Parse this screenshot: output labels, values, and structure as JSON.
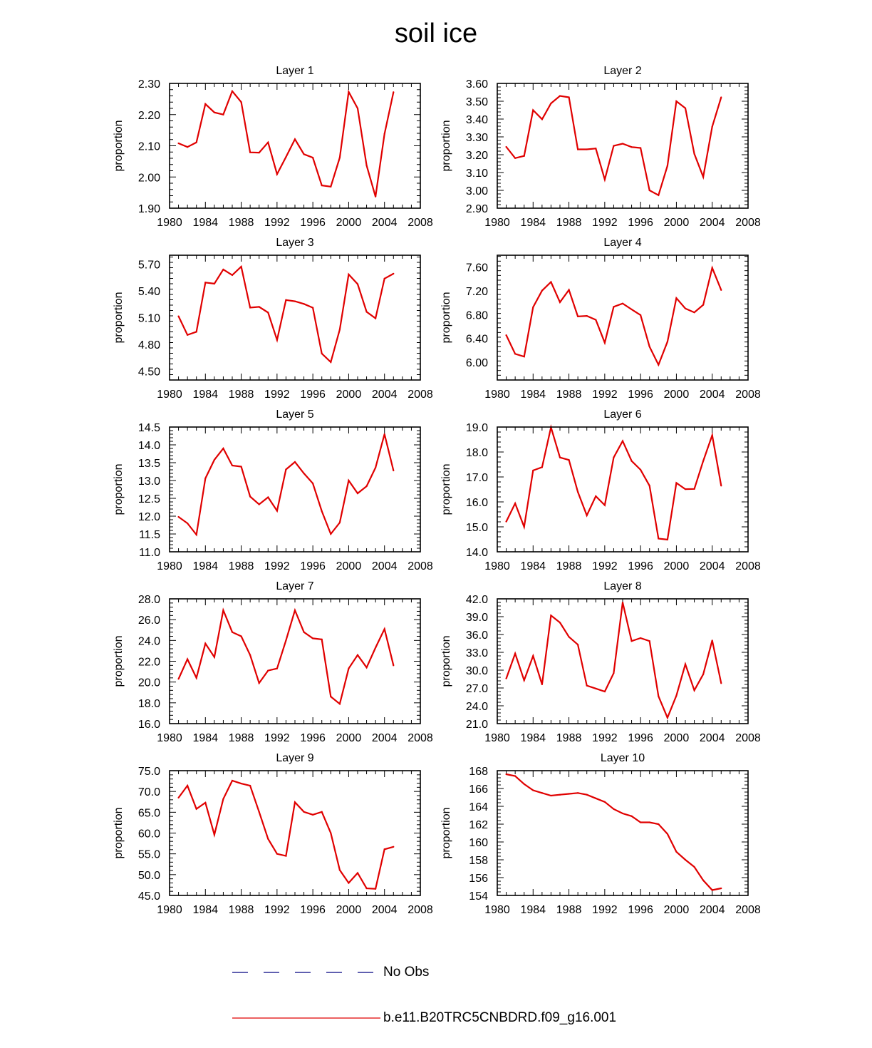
{
  "title": "soil ice",
  "series_colors": {
    "model": "#e00000",
    "obs": "#000080"
  },
  "legend": {
    "obs_label": "No Obs",
    "model_label": "b.e11.B20TRC5CNBDRD.f09_g16.001"
  },
  "chart_data": [
    {
      "type": "line",
      "title": "Layer 1",
      "xlabel": "",
      "ylabel": "proportion",
      "xlim": [
        1980,
        2008
      ],
      "ylim": [
        1.9,
        2.3
      ],
      "x_ticks": [
        "1980",
        "1984",
        "1988",
        "1992",
        "1996",
        "2000",
        "2004",
        "2008"
      ],
      "y_ticks": [
        "1.90",
        "2.00",
        "2.10",
        "2.20",
        "2.30"
      ],
      "x": [
        1981,
        1982,
        1983,
        1984,
        1985,
        1986,
        1987,
        1988,
        1989,
        1990,
        1991,
        1992,
        1993,
        1994,
        1995,
        1996,
        1997,
        1998,
        1999,
        2000,
        2001,
        2002,
        2003,
        2004,
        2005
      ],
      "values": [
        2.108,
        2.096,
        2.111,
        2.234,
        2.207,
        2.2,
        2.275,
        2.24,
        2.079,
        2.078,
        2.111,
        2.009,
        2.064,
        2.121,
        2.073,
        2.062,
        1.973,
        1.969,
        2.062,
        2.273,
        2.22,
        2.037,
        1.937,
        2.138,
        2.272
      ]
    },
    {
      "type": "line",
      "title": "Layer 2",
      "xlabel": "",
      "ylabel": "proportion",
      "xlim": [
        1980,
        2008
      ],
      "ylim": [
        2.9,
        3.6
      ],
      "x_ticks": [
        "1980",
        "1984",
        "1988",
        "1992",
        "1996",
        "2000",
        "2004",
        "2008"
      ],
      "y_ticks": [
        "2.90",
        "3.00",
        "3.10",
        "3.20",
        "3.30",
        "3.40",
        "3.50",
        "3.60"
      ],
      "x": [
        1981,
        1982,
        1983,
        1984,
        1985,
        1986,
        1987,
        1988,
        1989,
        1990,
        1991,
        1992,
        1993,
        1994,
        1995,
        1996,
        1997,
        1998,
        1999,
        2000,
        2001,
        2002,
        2003,
        2004,
        2005
      ],
      "values": [
        3.244,
        3.181,
        3.193,
        3.45,
        3.399,
        3.488,
        3.53,
        3.522,
        3.23,
        3.23,
        3.235,
        3.061,
        3.25,
        3.262,
        3.243,
        3.238,
        3.0,
        2.973,
        3.138,
        3.5,
        3.461,
        3.205,
        3.075,
        3.357,
        3.522
      ]
    },
    {
      "type": "line",
      "title": "Layer 3",
      "xlabel": "",
      "ylabel": "proportion",
      "xlim": [
        1980,
        2008
      ],
      "ylim": [
        4.4,
        5.8
      ],
      "x_ticks": [
        "1980",
        "1984",
        "1988",
        "1992",
        "1996",
        "2000",
        "2004",
        "2008"
      ],
      "y_ticks": [
        "4.50",
        "4.80",
        "5.10",
        "5.40",
        "5.70"
      ],
      "x": [
        1981,
        1982,
        1983,
        1984,
        1985,
        1986,
        1987,
        1988,
        1989,
        1990,
        1991,
        1992,
        1993,
        1994,
        1995,
        1996,
        1997,
        1998,
        1999,
        2000,
        2001,
        2002,
        2003,
        2004,
        2005
      ],
      "values": [
        5.115,
        4.906,
        4.941,
        5.494,
        5.481,
        5.64,
        5.577,
        5.672,
        5.212,
        5.221,
        5.157,
        4.849,
        5.298,
        5.283,
        5.254,
        5.211,
        4.697,
        4.601,
        4.966,
        5.585,
        5.476,
        5.165,
        5.092,
        5.538,
        5.593
      ]
    },
    {
      "type": "line",
      "title": "Layer 4",
      "xlabel": "",
      "ylabel": "proportion",
      "xlim": [
        1980,
        2008
      ],
      "ylim": [
        5.7,
        7.8
      ],
      "x_ticks": [
        "1980",
        "1984",
        "1988",
        "1992",
        "1996",
        "2000",
        "2004",
        "2008"
      ],
      "y_ticks": [
        "6.00",
        "6.40",
        "6.80",
        "7.20",
        "7.60"
      ],
      "x": [
        1981,
        1982,
        1983,
        1984,
        1985,
        1986,
        1987,
        1988,
        1989,
        1990,
        1991,
        1992,
        1993,
        1994,
        1995,
        1996,
        1997,
        1998,
        1999,
        2000,
        2001,
        2002,
        2003,
        2004,
        2005
      ],
      "values": [
        6.455,
        6.139,
        6.094,
        6.925,
        7.205,
        7.35,
        7.009,
        7.217,
        6.771,
        6.779,
        6.713,
        6.328,
        6.932,
        6.988,
        6.888,
        6.793,
        6.262,
        5.956,
        6.344,
        7.078,
        6.904,
        6.838,
        6.965,
        7.588,
        7.214
      ]
    },
    {
      "type": "line",
      "title": "Layer 5",
      "xlabel": "",
      "ylabel": "proportion",
      "xlim": [
        1980,
        2008
      ],
      "ylim": [
        11.0,
        14.5
      ],
      "x_ticks": [
        "1980",
        "1984",
        "1988",
        "1992",
        "1996",
        "2000",
        "2004",
        "2008"
      ],
      "y_ticks": [
        "11.0",
        "11.5",
        "12.0",
        "12.5",
        "13.0",
        "13.5",
        "14.0",
        "14.5"
      ],
      "x": [
        1981,
        1982,
        1983,
        1984,
        1985,
        1986,
        1987,
        1988,
        1989,
        1990,
        1991,
        1992,
        1993,
        1994,
        1995,
        1996,
        1997,
        1998,
        1999,
        2000,
        2001,
        2002,
        2003,
        2004,
        2005
      ],
      "values": [
        11.98,
        11.8,
        11.48,
        13.06,
        13.58,
        13.9,
        13.42,
        13.39,
        12.55,
        12.33,
        12.53,
        12.15,
        13.31,
        13.52,
        13.2,
        12.92,
        12.14,
        11.5,
        11.82,
        13.0,
        12.64,
        12.84,
        13.36,
        14.3,
        13.28
      ]
    },
    {
      "type": "line",
      "title": "Layer 6",
      "xlabel": "",
      "ylabel": "proportion",
      "xlim": [
        1980,
        2008
      ],
      "ylim": [
        14.0,
        19.0
      ],
      "x_ticks": [
        "1980",
        "1984",
        "1988",
        "1992",
        "1996",
        "2000",
        "2004",
        "2008"
      ],
      "y_ticks": [
        "14.0",
        "15.0",
        "16.0",
        "17.0",
        "18.0",
        "19.0"
      ],
      "x": [
        1981,
        1982,
        1983,
        1984,
        1985,
        1986,
        1987,
        1988,
        1989,
        1990,
        1991,
        1992,
        1993,
        1994,
        1995,
        1996,
        1997,
        1998,
        1999,
        2000,
        2001,
        2002,
        2003,
        2004,
        2005
      ],
      "values": [
        15.21,
        15.94,
        15.0,
        17.26,
        17.39,
        18.99,
        17.78,
        17.68,
        16.4,
        15.46,
        16.23,
        15.87,
        17.78,
        18.44,
        17.64,
        17.29,
        16.65,
        14.53,
        14.49,
        16.76,
        16.51,
        16.52,
        17.64,
        18.67,
        16.65
      ]
    },
    {
      "type": "line",
      "title": "Layer 7",
      "xlabel": "",
      "ylabel": "proportion",
      "xlim": [
        1980,
        2008
      ],
      "ylim": [
        16.0,
        28.0
      ],
      "x_ticks": [
        "1980",
        "1984",
        "1988",
        "1992",
        "1996",
        "2000",
        "2004",
        "2008"
      ],
      "y_ticks": [
        "16.0",
        "18.0",
        "20.0",
        "22.0",
        "24.0",
        "26.0",
        "28.0"
      ],
      "x": [
        1981,
        1982,
        1983,
        1984,
        1985,
        1986,
        1987,
        1988,
        1989,
        1990,
        1991,
        1992,
        1993,
        1994,
        1995,
        1996,
        1997,
        1998,
        1999,
        2000,
        2001,
        2002,
        2003,
        2004,
        2005
      ],
      "values": [
        20.3,
        22.2,
        20.4,
        23.7,
        22.4,
        26.9,
        24.8,
        24.4,
        22.6,
        19.9,
        21.1,
        21.3,
        24.0,
        26.9,
        24.8,
        24.2,
        24.1,
        18.6,
        17.9,
        21.3,
        22.6,
        21.4,
        23.3,
        25.1,
        21.6
      ]
    },
    {
      "type": "line",
      "title": "Layer 8",
      "xlabel": "",
      "ylabel": "proportion",
      "xlim": [
        1980,
        2008
      ],
      "ylim": [
        21.0,
        42.0
      ],
      "x_ticks": [
        "1980",
        "1984",
        "1988",
        "1992",
        "1996",
        "2000",
        "2004",
        "2008"
      ],
      "y_ticks": [
        "21.0",
        "24.0",
        "27.0",
        "30.0",
        "33.0",
        "36.0",
        "39.0",
        "42.0"
      ],
      "x": [
        1981,
        1982,
        1983,
        1984,
        1985,
        1986,
        1987,
        1988,
        1989,
        1990,
        1991,
        1992,
        1993,
        1994,
        1995,
        1996,
        1997,
        1998,
        1999,
        2000,
        2001,
        2002,
        2003,
        2004,
        2005
      ],
      "values": [
        28.6,
        32.8,
        28.3,
        32.4,
        27.6,
        39.2,
        38.0,
        35.6,
        34.3,
        27.4,
        26.9,
        26.4,
        29.5,
        41.4,
        34.9,
        35.4,
        34.9,
        25.6,
        22.0,
        25.7,
        31.0,
        26.6,
        29.3,
        35.0,
        27.8
      ]
    },
    {
      "type": "line",
      "title": "Layer 9",
      "xlabel": "",
      "ylabel": "proportion",
      "xlim": [
        1980,
        2008
      ],
      "ylim": [
        45.0,
        75.0
      ],
      "x_ticks": [
        "1980",
        "1984",
        "1988",
        "1992",
        "1996",
        "2000",
        "2004",
        "2008"
      ],
      "y_ticks": [
        "45.0",
        "50.0",
        "55.0",
        "60.0",
        "65.0",
        "70.0",
        "75.0"
      ],
      "x": [
        1981,
        1982,
        1983,
        1984,
        1985,
        1986,
        1987,
        1988,
        1989,
        1990,
        1991,
        1992,
        1993,
        1994,
        1995,
        1996,
        1997,
        1998,
        1999,
        2000,
        2001,
        2002,
        2003,
        2004,
        2005
      ],
      "values": [
        68.5,
        71.4,
        65.8,
        67.3,
        59.6,
        68.2,
        72.6,
        71.9,
        71.4,
        65.1,
        58.6,
        55.0,
        54.5,
        67.4,
        65.1,
        64.4,
        65.1,
        60.0,
        51.1,
        48.0,
        50.4,
        46.7,
        46.6,
        56.1,
        56.7
      ]
    },
    {
      "type": "line",
      "title": "Layer 10",
      "xlabel": "",
      "ylabel": "proportion",
      "xlim": [
        1980,
        2008
      ],
      "ylim": [
        154,
        168
      ],
      "x_ticks": [
        "1980",
        "1984",
        "1988",
        "1992",
        "1996",
        "2000",
        "2004",
        "2008"
      ],
      "y_ticks": [
        "154",
        "156",
        "158",
        "160",
        "162",
        "164",
        "166",
        "168"
      ],
      "x": [
        1981,
        1982,
        1983,
        1984,
        1985,
        1986,
        1987,
        1988,
        1989,
        1990,
        1991,
        1992,
        1993,
        1994,
        1995,
        1996,
        1997,
        1998,
        1999,
        2000,
        2001,
        2002,
        2003,
        2004,
        2005
      ],
      "values": [
        167.6,
        167.4,
        166.5,
        165.8,
        165.5,
        165.2,
        165.3,
        165.4,
        165.5,
        165.3,
        164.9,
        164.5,
        163.7,
        163.2,
        162.9,
        162.2,
        162.2,
        162.0,
        160.9,
        158.9,
        158.0,
        157.2,
        155.7,
        154.6,
        154.8
      ]
    }
  ]
}
